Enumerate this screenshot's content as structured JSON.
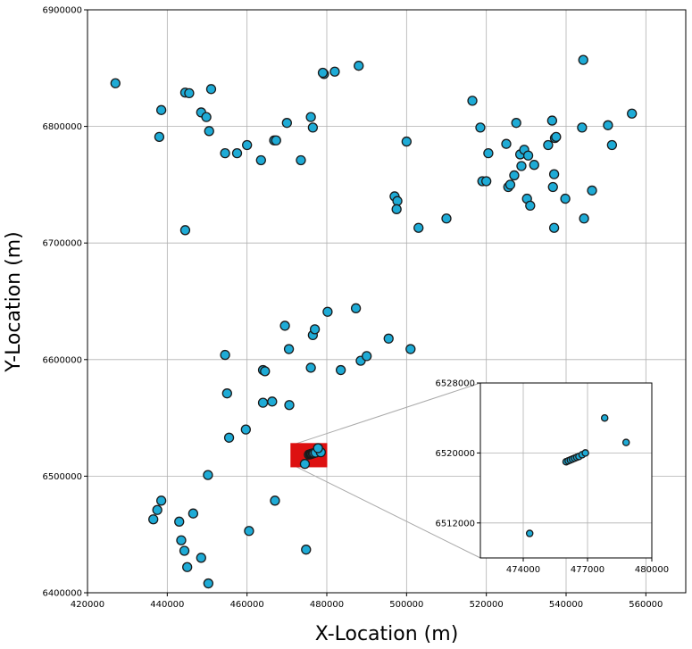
{
  "chart_data": {
    "type": "scatter",
    "xlabel": "X-Location (m)",
    "ylabel": "Y-Location (m)",
    "xlim": [
      420000,
      570000
    ],
    "ylim": [
      6400000,
      6900000
    ],
    "x_ticks": [
      "420000",
      "440000",
      "460000",
      "480000",
      "500000",
      "520000",
      "540000",
      "560000"
    ],
    "y_ticks": [
      "6400000",
      "6500000",
      "6600000",
      "6700000",
      "6800000",
      "6900000"
    ],
    "grid": true,
    "colors": {
      "marker_fill": "#1eabd6",
      "marker_edge": "#1a1a1a",
      "highlight": "#dd1111",
      "grid": "#b0b0b0",
      "connector": "#aaaaaa"
    },
    "points": [
      [
        427000,
        6837000
      ],
      [
        438500,
        6814000
      ],
      [
        438000,
        6791000
      ],
      [
        444500,
        6829000
      ],
      [
        445500,
        6828500
      ],
      [
        451000,
        6832000
      ],
      [
        448500,
        6812000
      ],
      [
        449800,
        6808000
      ],
      [
        450500,
        6796000
      ],
      [
        444500,
        6711000
      ],
      [
        454500,
        6777000
      ],
      [
        457500,
        6777000
      ],
      [
        460000,
        6784000
      ],
      [
        463500,
        6771000
      ],
      [
        466800,
        6788000
      ],
      [
        467300,
        6788000
      ],
      [
        470000,
        6803000
      ],
      [
        473500,
        6771000
      ],
      [
        476000,
        6808000
      ],
      [
        476500,
        6799000
      ],
      [
        479300,
        6845000
      ],
      [
        479000,
        6846000
      ],
      [
        482000,
        6847000
      ],
      [
        488000,
        6852000
      ],
      [
        497000,
        6740000
      ],
      [
        497700,
        6736000
      ],
      [
        497500,
        6729000
      ],
      [
        500000,
        6787000
      ],
      [
        503000,
        6713000
      ],
      [
        510000,
        6721000
      ],
      [
        516500,
        6822000
      ],
      [
        518500,
        6799000
      ],
      [
        519000,
        6753000
      ],
      [
        520000,
        6753000
      ],
      [
        520500,
        6777000
      ],
      [
        525000,
        6785000
      ],
      [
        525500,
        6748000
      ],
      [
        526000,
        6750000
      ],
      [
        527000,
        6758000
      ],
      [
        527500,
        6803000
      ],
      [
        528500,
        6776000
      ],
      [
        528800,
        6766000
      ],
      [
        529500,
        6780000
      ],
      [
        530200,
        6738000
      ],
      [
        530500,
        6775000
      ],
      [
        531000,
        6732000
      ],
      [
        532000,
        6767000
      ],
      [
        535500,
        6784000
      ],
      [
        536500,
        6805000
      ],
      [
        536700,
        6748000
      ],
      [
        537000,
        6759000
      ],
      [
        537200,
        6790000
      ],
      [
        537500,
        6791000
      ],
      [
        537000,
        6713000
      ],
      [
        539800,
        6738000
      ],
      [
        544000,
        6799000
      ],
      [
        544300,
        6857000
      ],
      [
        544500,
        6721000
      ],
      [
        546500,
        6745000
      ],
      [
        550500,
        6801000
      ],
      [
        551500,
        6784000
      ],
      [
        556500,
        6811000
      ],
      [
        454500,
        6604000
      ],
      [
        455000,
        6571000
      ],
      [
        455500,
        6533000
      ],
      [
        459700,
        6540000
      ],
      [
        464000,
        6591000
      ],
      [
        464500,
        6590000
      ],
      [
        464000,
        6563000
      ],
      [
        466300,
        6564000
      ],
      [
        469500,
        6629000
      ],
      [
        470500,
        6609000
      ],
      [
        470600,
        6561000
      ],
      [
        476000,
        6593000
      ],
      [
        476500,
        6621000
      ],
      [
        477000,
        6626000
      ],
      [
        480200,
        6641000
      ],
      [
        483500,
        6591000
      ],
      [
        487300,
        6644000
      ],
      [
        488500,
        6599000
      ],
      [
        490000,
        6603000
      ],
      [
        495500,
        6618000
      ],
      [
        501000,
        6609000
      ],
      [
        450200,
        6501000
      ],
      [
        436500,
        6463000
      ],
      [
        437500,
        6471000
      ],
      [
        438500,
        6479000
      ],
      [
        443000,
        6461000
      ],
      [
        446500,
        6468000
      ],
      [
        443500,
        6445000
      ],
      [
        444300,
        6436000
      ],
      [
        445000,
        6422000
      ],
      [
        448500,
        6430000
      ],
      [
        450300,
        6408000
      ],
      [
        460500,
        6453000
      ],
      [
        467000,
        6479000
      ],
      [
        474800,
        6437000
      ]
    ],
    "highlight_points": [
      [
        474500,
        6510500
      ],
      [
        475500,
        6518500
      ],
      [
        475800,
        6518800
      ],
      [
        476000,
        6519000
      ],
      [
        476200,
        6519200
      ],
      [
        476500,
        6519500
      ],
      [
        476800,
        6519800
      ],
      [
        477200,
        6520200
      ],
      [
        478500,
        6520500
      ],
      [
        477800,
        6524000
      ]
    ],
    "highlight_box": {
      "xlim": [
        471000,
        480000
      ],
      "ylim": [
        6508000,
        6528000
      ]
    },
    "inset": {
      "xlim": [
        472000,
        480000
      ],
      "ylim": [
        6508000,
        6528000
      ],
      "x_ticks": [
        "474000",
        "477000",
        "480000"
      ],
      "y_ticks": [
        "6512000",
        "6520000",
        "6528000"
      ],
      "grid": true,
      "points": [
        [
          476000,
          6519000
        ],
        [
          476100,
          6519100
        ],
        [
          476200,
          6519200
        ],
        [
          476300,
          6519300
        ],
        [
          476400,
          6519400
        ],
        [
          476500,
          6519500
        ],
        [
          476600,
          6519600
        ],
        [
          476750,
          6519800
        ],
        [
          476900,
          6520000
        ],
        [
          474300,
          6510800
        ],
        [
          477800,
          6524000
        ],
        [
          478800,
          6521200
        ]
      ]
    }
  }
}
